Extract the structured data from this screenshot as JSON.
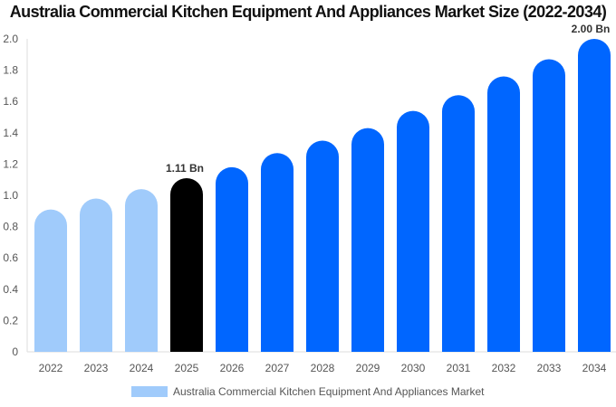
{
  "chart_data": {
    "type": "bar",
    "title": "Australia Commercial Kitchen Equipment And Appliances Market Size (2022-2034)",
    "categories": [
      "2022",
      "2023",
      "2024",
      "2025",
      "2026",
      "2027",
      "2028",
      "2029",
      "2030",
      "2031",
      "2032",
      "2033",
      "2034"
    ],
    "series": [
      {
        "name": "Australia Commercial Kitchen Equipment And Appliances Market",
        "values": [
          0.91,
          0.98,
          1.04,
          1.11,
          1.18,
          1.27,
          1.35,
          1.43,
          1.54,
          1.64,
          1.76,
          1.87,
          2.0
        ]
      }
    ],
    "ylim": [
      0,
      2.0
    ],
    "yticks": [
      "0",
      "0.2",
      "0.4",
      "0.6",
      "0.8",
      "1.0",
      "1.2",
      "1.4",
      "1.6",
      "1.8",
      "2.0"
    ],
    "data_labels": [
      {
        "category": "2025",
        "text": "1.11 Bn"
      },
      {
        "category": "2034",
        "text": "2.00 Bn"
      }
    ],
    "colors": {
      "historical": "#a0cbfb",
      "current": "#000000",
      "forecast": "#0066ff"
    },
    "grid": false,
    "legend": "bottom"
  }
}
